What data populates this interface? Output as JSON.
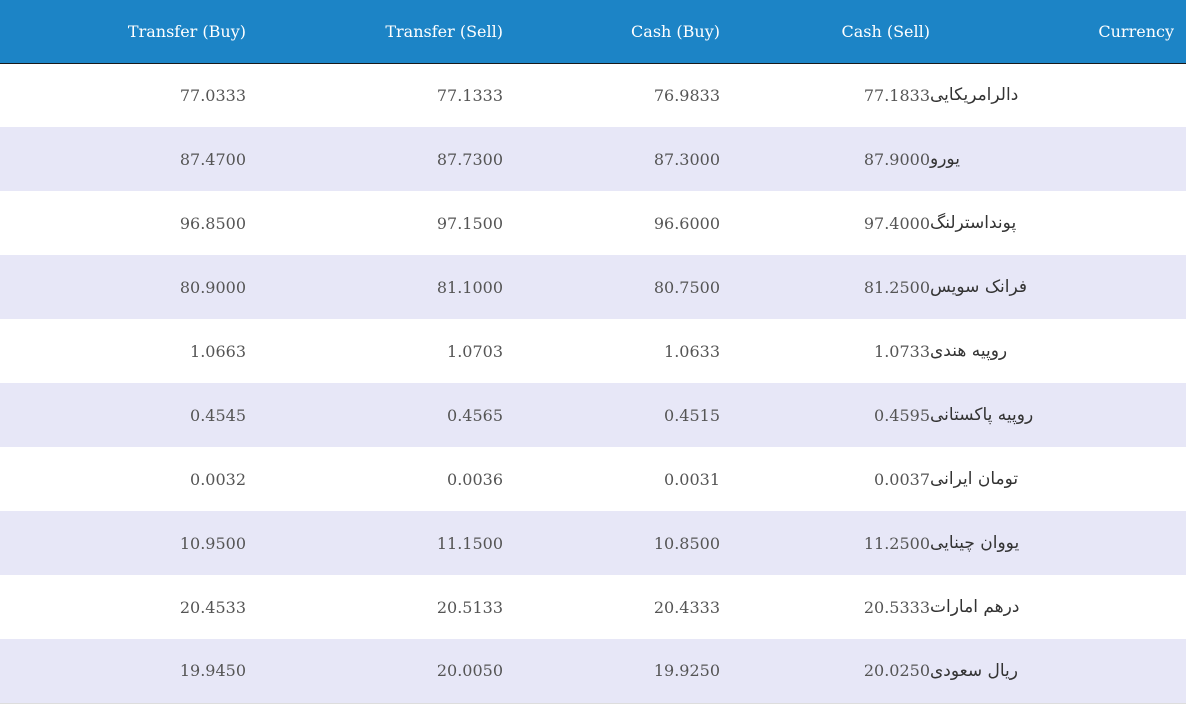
{
  "colors": {
    "header_bg": "#1c84c6",
    "row_white": "#ffffff",
    "row_alt": "#e7e7f7"
  },
  "table": {
    "headers": {
      "transfer_buy": "Transfer (Buy)",
      "transfer_sell": "Transfer (Sell)",
      "cash_buy": "Cash (Buy)",
      "cash_sell": "Cash (Sell)",
      "currency": "Currency"
    },
    "rows": [
      {
        "transfer_buy": "77.0333",
        "transfer_sell": "77.1333",
        "cash_buy": "76.9833",
        "cash_sell": "77.1833",
        "currency": "دالرامریکایی"
      },
      {
        "transfer_buy": "87.4700",
        "transfer_sell": "87.7300",
        "cash_buy": "87.3000",
        "cash_sell": "87.9000",
        "currency": "یورو"
      },
      {
        "transfer_buy": "96.8500",
        "transfer_sell": "97.1500",
        "cash_buy": "96.6000",
        "cash_sell": "97.4000",
        "currency": "پونداسترلنگ"
      },
      {
        "transfer_buy": "80.9000",
        "transfer_sell": "81.1000",
        "cash_buy": "80.7500",
        "cash_sell": "81.2500",
        "currency": "فرانک سویس"
      },
      {
        "transfer_buy": "1.0663",
        "transfer_sell": "1.0703",
        "cash_buy": "1.0633",
        "cash_sell": "1.0733",
        "currency": "روپیه هندی"
      },
      {
        "transfer_buy": "0.4545",
        "transfer_sell": "0.4565",
        "cash_buy": "0.4515",
        "cash_sell": "0.4595",
        "currency": "روپیه پاکستانی"
      },
      {
        "transfer_buy": "0.0032",
        "transfer_sell": "0.0036",
        "cash_buy": "0.0031",
        "cash_sell": "0.0037",
        "currency": "تومان ایرانی"
      },
      {
        "transfer_buy": "10.9500",
        "transfer_sell": "11.1500",
        "cash_buy": "10.8500",
        "cash_sell": "11.2500",
        "currency": "یووان چینایی"
      },
      {
        "transfer_buy": "20.4533",
        "transfer_sell": "20.5133",
        "cash_buy": "20.4333",
        "cash_sell": "20.5333",
        "currency": "درهم امارات"
      },
      {
        "transfer_buy": "19.9450",
        "transfer_sell": "20.0050",
        "cash_buy": "19.9250",
        "cash_sell": "20.0250",
        "currency": "ریال سعودی"
      }
    ]
  }
}
